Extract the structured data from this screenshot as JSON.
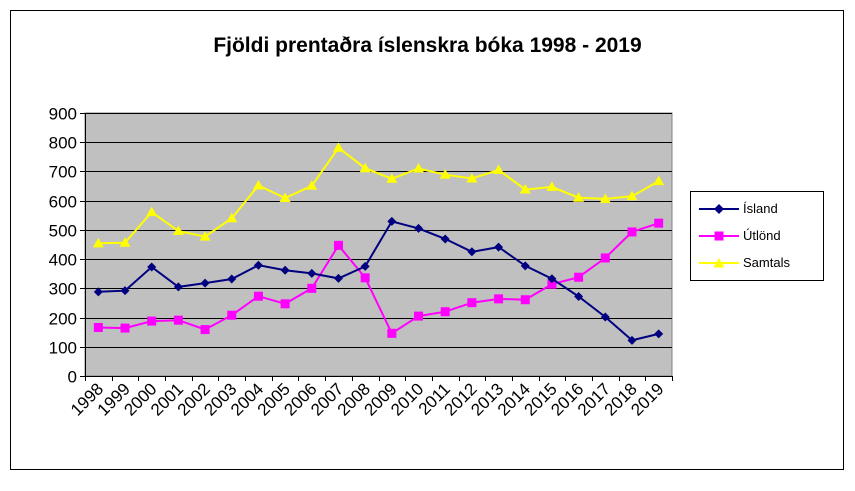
{
  "chart_data": {
    "type": "line",
    "title": "Fjöldi prentaðra íslenskra bóka 1998 - 2019",
    "xlabel": "",
    "ylabel": "",
    "ylim": [
      0,
      900
    ],
    "yticks": [
      0,
      100,
      200,
      300,
      400,
      500,
      600,
      700,
      800,
      900
    ],
    "grid": true,
    "legend": "right",
    "plot_background": "#c0c0c0",
    "categories": [
      "1998",
      "1999",
      "2000",
      "2001",
      "2002",
      "2003",
      "2004",
      "2005",
      "2006",
      "2007",
      "2008",
      "2009",
      "2010",
      "2011",
      "2012",
      "2013",
      "2014",
      "2015",
      "2016",
      "2017",
      "2018",
      "2019"
    ],
    "series": [
      {
        "name": "Ísland",
        "color": "#000080",
        "marker": "diamond",
        "values": [
          288,
          292,
          373,
          305,
          318,
          332,
          379,
          362,
          351,
          334,
          375,
          529,
          505,
          469,
          425,
          441,
          377,
          333,
          272,
          202,
          122,
          144
        ]
      },
      {
        "name": "Útlönd",
        "color": "#ff00ff",
        "marker": "square",
        "values": [
          166,
          164,
          188,
          191,
          159,
          208,
          273,
          247,
          300,
          447,
          336,
          146,
          205,
          220,
          251,
          264,
          261,
          314,
          338,
          404,
          493,
          523
        ]
      },
      {
        "name": "Samtals",
        "color": "#ffff00",
        "marker": "triangle",
        "values": [
          454,
          456,
          561,
          496,
          477,
          540,
          652,
          609,
          651,
          781,
          711,
          675,
          710,
          689,
          676,
          705,
          638,
          647,
          610,
          606,
          615,
          667
        ]
      }
    ]
  }
}
